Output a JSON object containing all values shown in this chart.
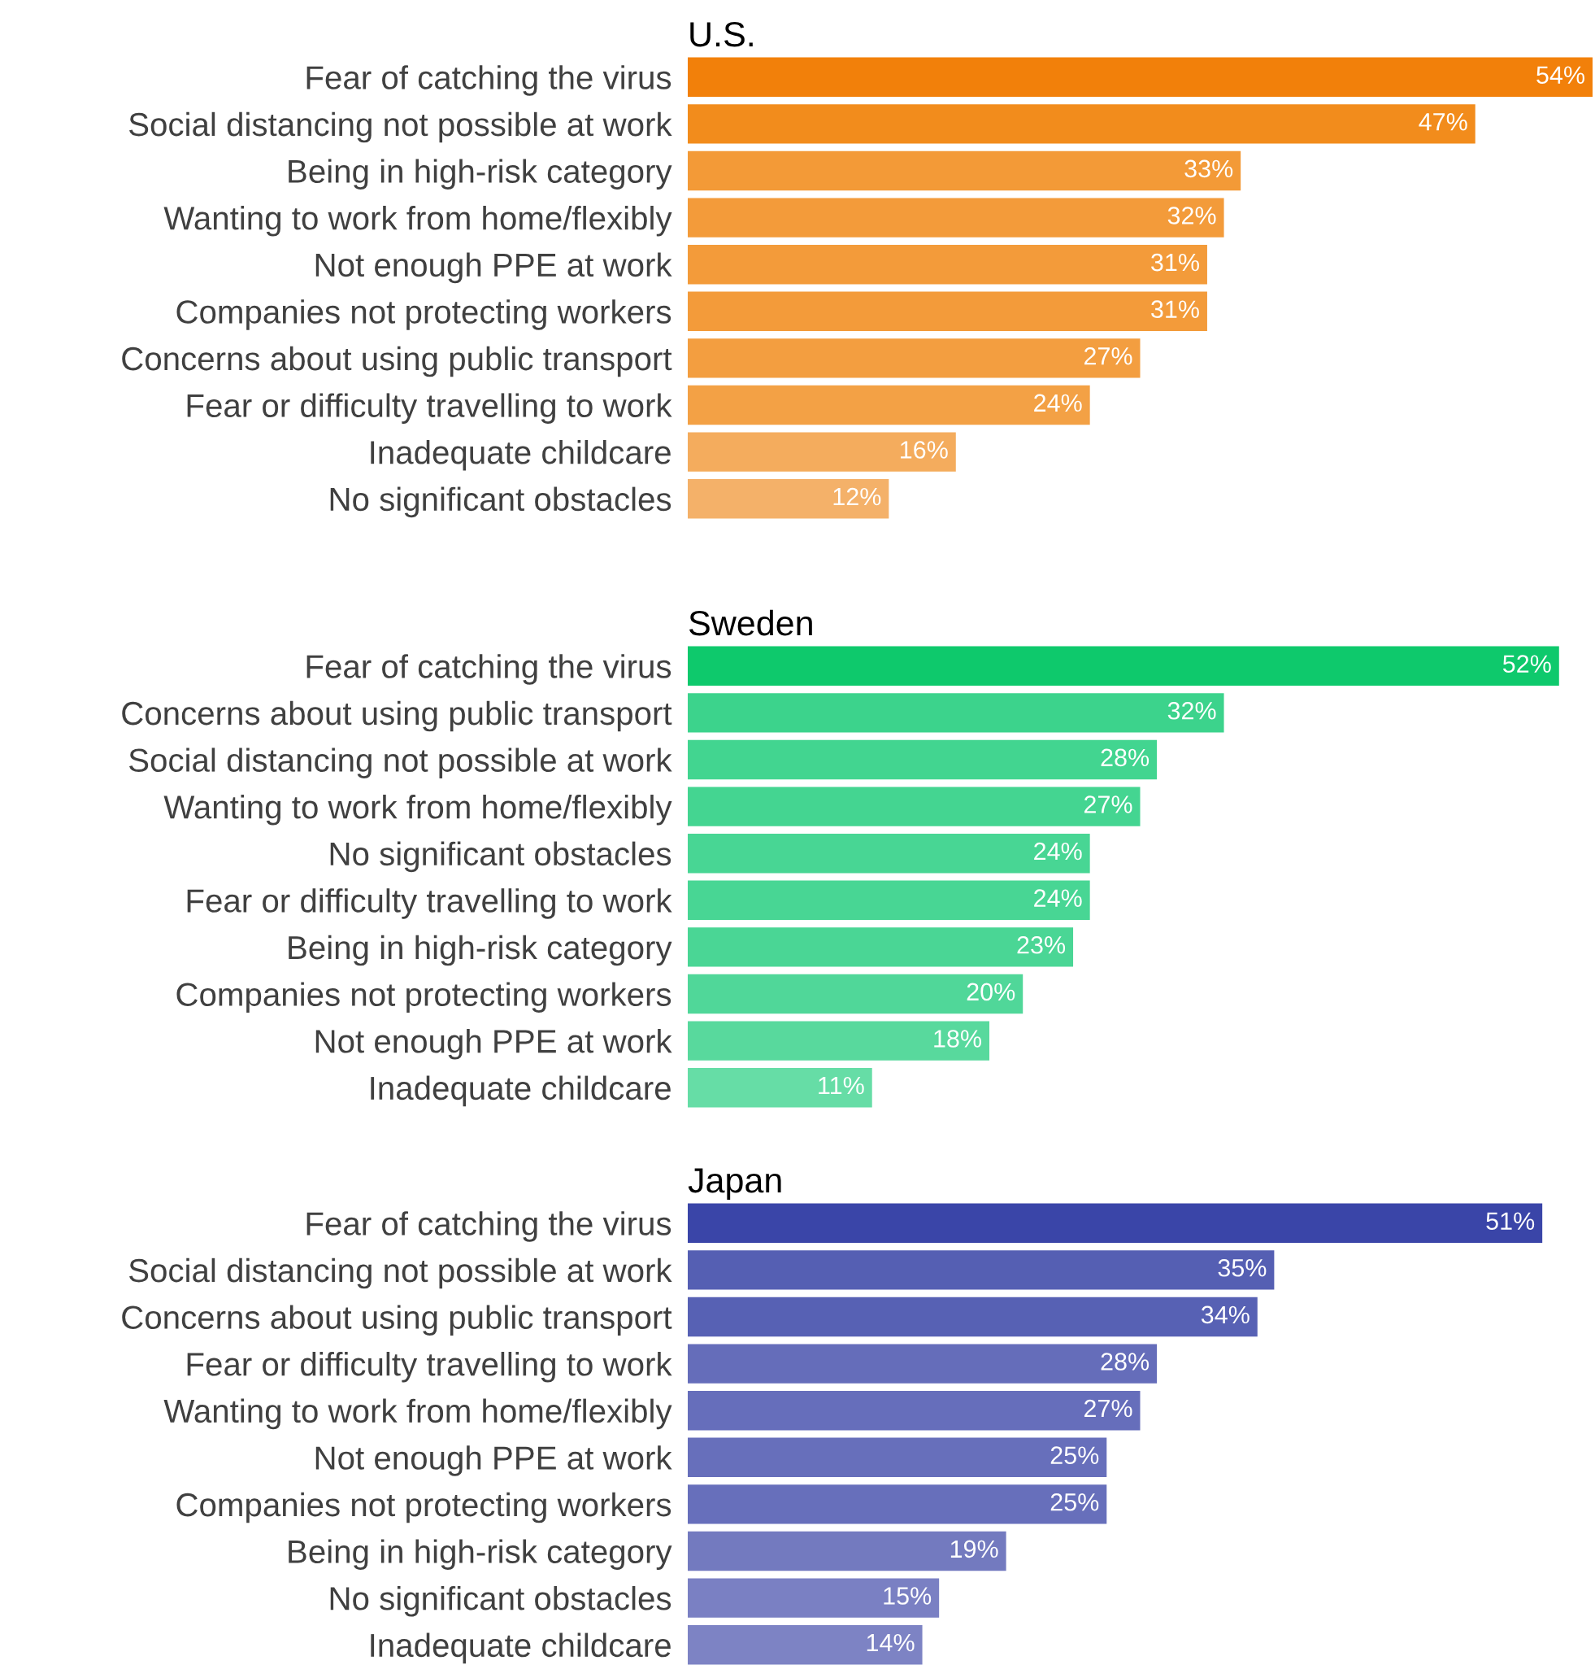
{
  "chart_data": [
    {
      "type": "bar",
      "orientation": "horizontal",
      "title": "U.S.",
      "grid": false,
      "legend": false,
      "categories": [
        "Fear of catching the virus",
        "Social distancing not possible at work",
        "Being in high-risk category",
        "Wanting to work from home/flexibly",
        "Not enough PPE at work",
        "Companies not protecting workers",
        "Concerns about using public transport",
        "Fear or difficulty travelling to work",
        "Inadequate childcare",
        "No significant obstacles"
      ],
      "values": [
        54,
        47,
        33,
        32,
        31,
        31,
        27,
        24,
        16,
        12
      ],
      "value_labels": [
        "54%",
        "47%",
        "33%",
        "32%",
        "31%",
        "31%",
        "27%",
        "24%",
        "16%",
        "12%"
      ],
      "colors": [
        "#f2800a",
        "#f28c1c",
        "#f39a37",
        "#f39b3a",
        "#f39b3a",
        "#f39b3a",
        "#f39e40",
        "#f3a145",
        "#f4ac5d",
        "#f4b169"
      ]
    },
    {
      "type": "bar",
      "orientation": "horizontal",
      "title": "Sweden",
      "grid": false,
      "legend": false,
      "categories": [
        "Fear of catching the virus",
        "Concerns about using public transport",
        "Social distancing not possible at work",
        "Wanting to work from home/flexibly",
        "No significant obstacles",
        "Fear or difficulty travelling to work",
        "Being in high-risk category",
        "Companies not protecting workers",
        "Not enough PPE at work",
        "Inadequate childcare"
      ],
      "values": [
        52,
        32,
        28,
        27,
        24,
        24,
        23,
        20,
        18,
        11
      ],
      "value_labels": [
        "52%",
        "32%",
        "28%",
        "27%",
        "24%",
        "24%",
        "23%",
        "20%",
        "18%",
        "11%"
      ],
      "colors": [
        "#0ec96c",
        "#3cd38c",
        "#42d590",
        "#44d591",
        "#48d694",
        "#48d694",
        "#4ad695",
        "#50d799",
        "#58d99d",
        "#66dda6"
      ]
    },
    {
      "type": "bar",
      "orientation": "horizontal",
      "title": "Japan",
      "grid": false,
      "legend": false,
      "categories": [
        "Fear of catching the virus",
        "Social distancing not possible at work",
        "Concerns about using public transport",
        "Fear or difficulty travelling to work",
        "Wanting to work from home/flexibly",
        "Not enough PPE at work",
        "Companies not protecting workers",
        "Being in high-risk category",
        "No significant obstacles",
        "Inadequate childcare"
      ],
      "values": [
        51,
        35,
        34,
        28,
        27,
        25,
        25,
        19,
        15,
        14
      ],
      "value_labels": [
        "51%",
        "35%",
        "34%",
        "28%",
        "27%",
        "25%",
        "25%",
        "19%",
        "15%",
        "14%"
      ],
      "colors": [
        "#3a45a8",
        "#555fb3",
        "#5761b4",
        "#656dba",
        "#666ebb",
        "#676fbb",
        "#676fbb",
        "#737abf",
        "#7a80c3",
        "#7d83c4"
      ]
    }
  ]
}
